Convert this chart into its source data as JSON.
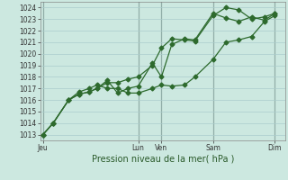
{
  "xlabel": "Pression niveau de la mer( hPa )",
  "ylim": [
    1012.5,
    1024.5
  ],
  "xlim": [
    0,
    9.5
  ],
  "yticks": [
    1013,
    1014,
    1015,
    1016,
    1017,
    1018,
    1019,
    1020,
    1021,
    1022,
    1023,
    1024
  ],
  "bg_color": "#cce8e0",
  "grid_color": "#aacccc",
  "line_color": "#2d6a2d",
  "xtick_labels": [
    "Jeu",
    "Lun",
    "Ven",
    "Sam",
    "Dim"
  ],
  "xtick_positions": [
    0.1,
    3.8,
    4.7,
    6.7,
    9.1
  ],
  "vline_positions": [
    0.1,
    3.8,
    4.7,
    6.7,
    9.1
  ],
  "line1_x": [
    0.1,
    0.5,
    1.1,
    1.5,
    1.9,
    2.2,
    2.6,
    3.0,
    3.4,
    3.8,
    4.35,
    4.7,
    5.1,
    5.6,
    6.0,
    6.7,
    7.2,
    7.7,
    8.2,
    8.7,
    9.1
  ],
  "line1_y": [
    1013.0,
    1014.0,
    1016.0,
    1016.5,
    1016.7,
    1017.0,
    1017.5,
    1017.5,
    1017.8,
    1018.0,
    1019.0,
    1020.5,
    1021.3,
    1021.2,
    1021.1,
    1023.3,
    1024.0,
    1023.8,
    1023.0,
    1023.2,
    1023.5
  ],
  "line2_x": [
    0.1,
    0.5,
    1.1,
    1.5,
    1.9,
    2.2,
    2.6,
    3.0,
    3.4,
    3.8,
    4.35,
    4.7,
    5.1,
    5.6,
    6.0,
    6.7,
    7.2,
    7.7,
    8.2,
    8.7,
    9.1
  ],
  "line2_y": [
    1013.0,
    1014.0,
    1016.0,
    1016.5,
    1016.7,
    1017.0,
    1017.7,
    1016.6,
    1017.0,
    1017.2,
    1019.2,
    1018.0,
    1020.8,
    1021.3,
    1021.2,
    1023.5,
    1023.1,
    1022.8,
    1023.2,
    1022.9,
    1023.5
  ],
  "line3_x": [
    0.1,
    0.5,
    1.1,
    1.5,
    1.9,
    2.2,
    2.6,
    3.0,
    3.4,
    3.8,
    4.35,
    4.7,
    5.1,
    5.6,
    6.0,
    6.7,
    7.2,
    7.7,
    8.2,
    8.7,
    9.1
  ],
  "line3_y": [
    1013.0,
    1014.0,
    1016.0,
    1016.7,
    1017.0,
    1017.3,
    1017.0,
    1017.0,
    1016.6,
    1016.6,
    1017.0,
    1017.3,
    1017.2,
    1017.3,
    1018.0,
    1019.5,
    1021.0,
    1021.2,
    1021.5,
    1022.8,
    1023.3
  ],
  "marker": "D",
  "marker_size": 2.5,
  "linewidth": 0.9,
  "ylabel_fontsize": 5.5,
  "xlabel_fontsize": 7.0,
  "xtick_fontsize": 5.5,
  "figsize": [
    3.2,
    2.0
  ],
  "dpi": 100
}
